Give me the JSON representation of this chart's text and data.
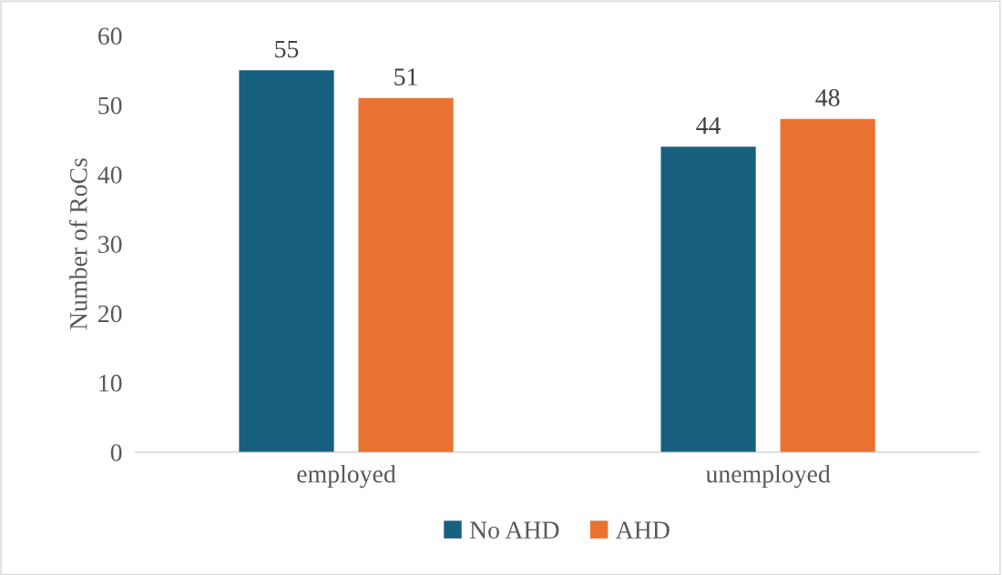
{
  "chart_data": {
    "type": "bar",
    "ylabel": "Number of RoCs",
    "categories": [
      "employed",
      "unemployed"
    ],
    "series": [
      {
        "name": "No AHD",
        "color": "#17607f",
        "values": [
          55,
          44
        ]
      },
      {
        "name": "AHD",
        "color": "#e97132",
        "values": [
          51,
          48
        ]
      }
    ],
    "ylim": [
      0,
      60
    ],
    "yticks": [
      0,
      10,
      20,
      30,
      40,
      50,
      60
    ],
    "data_labels": true,
    "grid": false,
    "legend": "bottom"
  }
}
